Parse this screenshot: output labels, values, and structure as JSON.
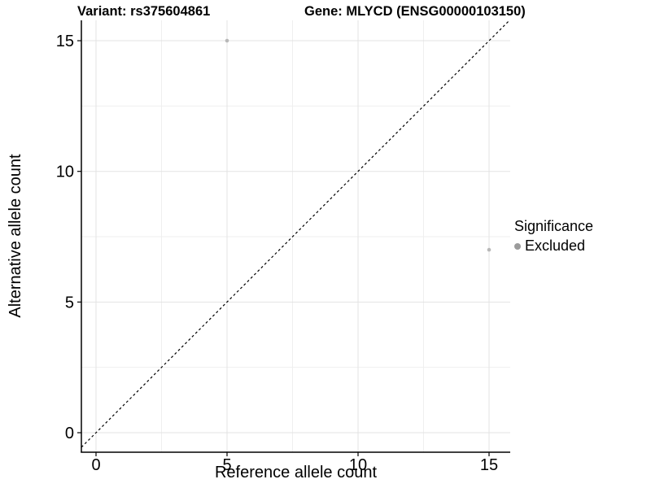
{
  "chart_data": {
    "type": "scatter",
    "title_left": "Variant: rs375604861",
    "title_right": "Gene: MLYCD (ENSG00000103150)",
    "xlabel": "Reference allele count",
    "ylabel": "Alternative allele count",
    "xlim": [
      -0.6,
      15.8
    ],
    "ylim": [
      -0.75,
      15.8
    ],
    "xticks": [
      0,
      5,
      10,
      15
    ],
    "yticks": [
      0,
      5,
      10,
      15
    ],
    "grid": "major and minor gridlines, white background",
    "reference_line": {
      "type": "identity",
      "slope": 1,
      "intercept": 0,
      "style": "dashed",
      "color": "#000000"
    },
    "series": [
      {
        "name": "Excluded",
        "color": "#b8b8b8",
        "points": [
          {
            "x": 5,
            "y": 15
          },
          {
            "x": 15,
            "y": 7
          }
        ]
      }
    ],
    "legend": {
      "title": "Significance",
      "position": "right",
      "entries": [
        {
          "label": "Excluded",
          "color": "#9b9b9b"
        }
      ]
    },
    "colors": {
      "grid_major": "#e3e3e3",
      "grid_minor": "#efefef",
      "axis_line": "#000000",
      "tick_label": "#000000",
      "background": "#ffffff"
    }
  }
}
